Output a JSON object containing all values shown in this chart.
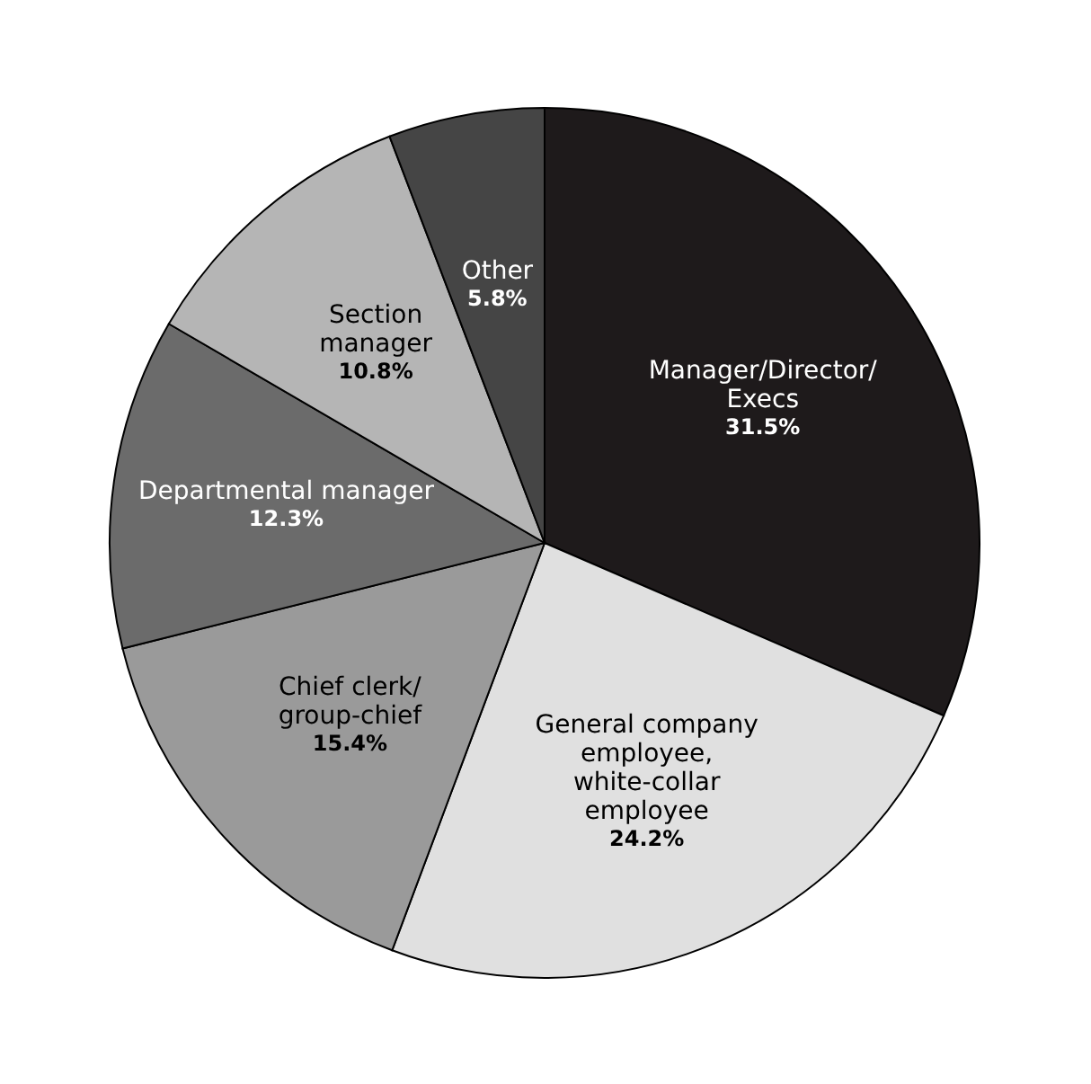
{
  "chart_data": {
    "type": "pie",
    "categories": [
      "Manager/Director/\nExecs",
      "General company\nemployee,\nwhite-collar\nemployee",
      "Chief clerk/\ngroup-chief",
      "Departmental manager",
      "Section\nmanager",
      "Other"
    ],
    "values": [
      31.5,
      24.2,
      15.4,
      12.3,
      10.8,
      5.8
    ],
    "colors": [
      "#1e1a1b",
      "#e0e0e0",
      "#9a9a9a",
      "#6b6b6b",
      "#b5b5b5",
      "#454545"
    ],
    "value_labels": [
      "31.5%",
      "24.2%",
      "15.4%",
      "12.3%",
      "10.8%",
      "5.8%"
    ],
    "legend": false
  }
}
